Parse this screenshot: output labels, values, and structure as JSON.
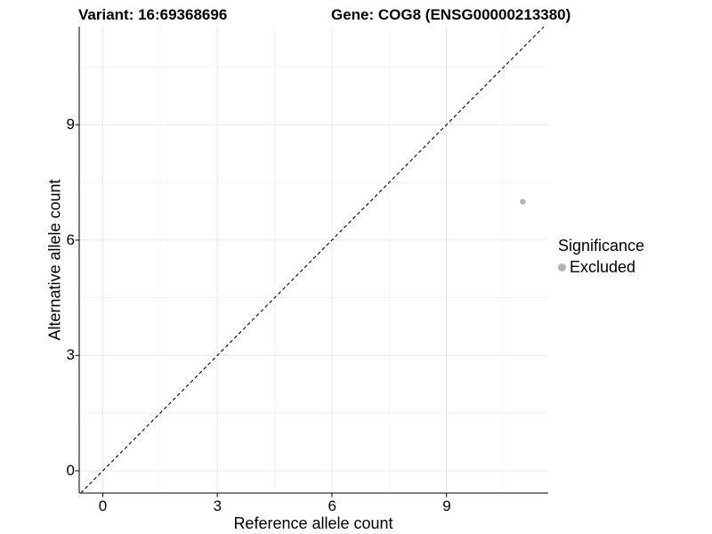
{
  "header": {
    "variant_title": "Variant: 16:69368696",
    "gene_title": "Gene: COG8 (ENSG00000213380)"
  },
  "axes": {
    "x": {
      "label": "Reference allele count",
      "tick_labels": [
        "0",
        "3",
        "6",
        "9"
      ]
    },
    "y": {
      "label": "Alternative allele count",
      "tick_labels": [
        "0",
        "3",
        "6",
        "9"
      ]
    }
  },
  "legend": {
    "title": "Significance",
    "items": [
      {
        "label": "Excluded",
        "color": "#b4b4b4"
      }
    ]
  },
  "colors": {
    "point": "#b4b4b4",
    "grid_major": "#e8e8e8",
    "grid_minor": "#f3f3f3",
    "axis_line": "#333333",
    "reference_line": "#000000",
    "background": "#ffffff"
  },
  "chart_data": {
    "type": "scatter",
    "title": "Variant: 16:69368696 / Gene: COG8 (ENSG00000213380)",
    "xlabel": "Reference allele count",
    "ylabel": "Alternative allele count",
    "xticks": [
      0,
      3,
      6,
      9
    ],
    "yticks": [
      0,
      3,
      6,
      9
    ],
    "minor_xticks": [
      1.5,
      4.5,
      7.5,
      10.5
    ],
    "minor_yticks": [
      1.5,
      4.5,
      7.5,
      10.5
    ],
    "xlim": [
      -0.62,
      11.67
    ],
    "ylim": [
      -0.58,
      11.55
    ],
    "grid": "major+minor",
    "legend_position": "right",
    "reference_line": {
      "type": "identity y=x",
      "style": "dashed",
      "color": "#000000"
    },
    "series": [
      {
        "name": "Excluded",
        "color": "#b4b4b4",
        "points": [
          {
            "x": 11,
            "y": 7
          }
        ]
      }
    ]
  }
}
